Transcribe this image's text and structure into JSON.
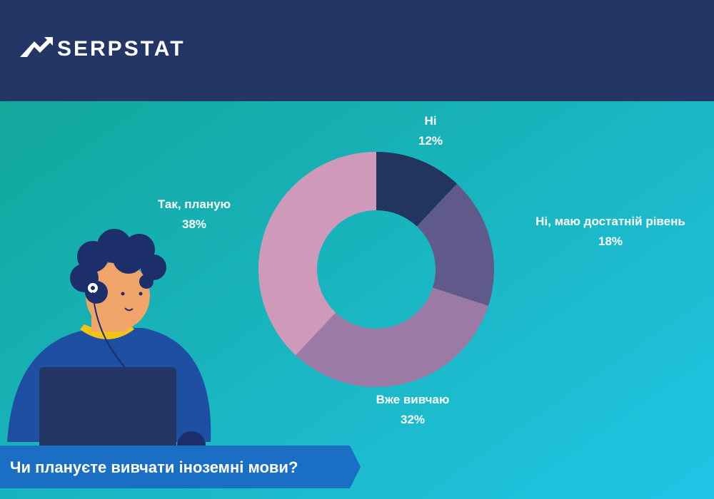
{
  "brand": "SERPSTAT",
  "chart_data": {
    "type": "donut",
    "title": "Чи плануєте вивчати іноземні мови?",
    "categories": [
      "Ні",
      "Ні, маю достатній рівень",
      "Вже вивчаю",
      "Так, планую"
    ],
    "values": [
      12,
      18,
      32,
      38
    ],
    "value_labels": [
      "12%",
      "18%",
      "32%",
      "38%"
    ],
    "colors": [
      "#22355f",
      "#5f5a8a",
      "#9b7aa6",
      "#cf9aba"
    ]
  }
}
